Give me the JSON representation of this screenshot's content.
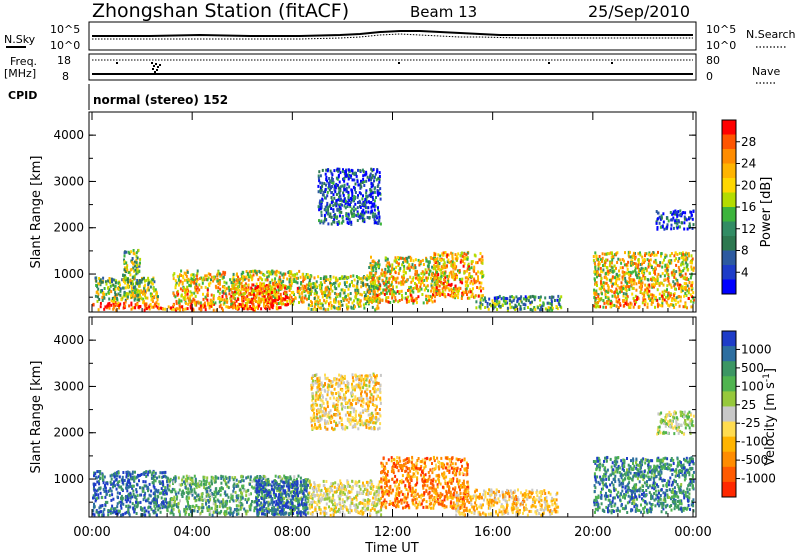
{
  "header": {
    "station": "Zhongshan Station (fitACF)",
    "beam": "Beam 13",
    "date": "25/Sep/2010"
  },
  "top_panels": {
    "nsky_label": "N.Sky",
    "nsky_ticks": [
      "10^5",
      "10^0"
    ],
    "nsearch_label": "N.Search",
    "nsearch_ticks": [
      "10^5",
      "10^0"
    ],
    "freq_label": "Freq.",
    "freq_unit": "[MHz]",
    "freq_ticks": [
      "18",
      "8"
    ],
    "nave_label": "Nave",
    "nave_ticks": [
      "80",
      "0"
    ],
    "cpid_label": "CPID",
    "cpid_value": "normal (stereo) 152"
  },
  "chart_data": [
    {
      "type": "heatmap",
      "name": "power",
      "ylabel": "Slant Range [km]",
      "yticks": [
        "4000",
        "3000",
        "2000",
        "1000"
      ],
      "ylim": [
        180,
        4500
      ],
      "xlim": [
        0,
        24
      ],
      "colorbar_label": "Power [dB]",
      "colorbar_ticks": [
        "28",
        "24",
        "20",
        "16",
        "12",
        "8",
        "4"
      ],
      "colorbar_colors": [
        "#ff0000",
        "#ff5500",
        "#ff8c00",
        "#ffb400",
        "#ffd700",
        "#b4dc00",
        "#3cb43c",
        "#328c64",
        "#2d7850",
        "#2d5aa0",
        "#1e3cc8",
        "#0000ff"
      ],
      "echo_regions": [
        {
          "t0": 0.0,
          "t1": 2.6,
          "r0": 250,
          "r1": 420,
          "level": 0.85
        },
        {
          "t0": 0.1,
          "t1": 2.6,
          "r0": 420,
          "r1": 950,
          "level": 0.45
        },
        {
          "t0": 1.2,
          "t1": 1.9,
          "r0": 500,
          "r1": 1550,
          "level": 0.45
        },
        {
          "t0": 2.6,
          "t1": 7.2,
          "r0": 250,
          "r1": 380,
          "level": 0.8
        },
        {
          "t0": 3.2,
          "t1": 8.6,
          "r0": 380,
          "r1": 1100,
          "level": 0.6
        },
        {
          "t0": 5.5,
          "t1": 7.8,
          "r0": 280,
          "r1": 800,
          "level": 0.75
        },
        {
          "t0": 8.6,
          "t1": 11.4,
          "r0": 250,
          "r1": 1000,
          "level": 0.5
        },
        {
          "t0": 11.0,
          "t1": 13.8,
          "r0": 400,
          "r1": 1400,
          "level": 0.6
        },
        {
          "t0": 13.6,
          "t1": 15.6,
          "r0": 500,
          "r1": 1500,
          "level": 0.65
        },
        {
          "t0": 15.3,
          "t1": 18.7,
          "r0": 250,
          "r1": 550,
          "level": 0.3
        },
        {
          "t0": 20.0,
          "t1": 24.0,
          "r0": 300,
          "r1": 1500,
          "level": 0.6
        },
        {
          "t0": 9.0,
          "t1": 11.5,
          "r0": 2100,
          "r1": 3300,
          "level": 0.15
        },
        {
          "t0": 22.5,
          "t1": 24.0,
          "r0": 2000,
          "r1": 2400,
          "level": 0.12
        }
      ]
    },
    {
      "type": "heatmap",
      "name": "velocity",
      "ylabel": "Slant Range [km]",
      "yticks": [
        "4000",
        "3000",
        "2000",
        "1000"
      ],
      "ylim": [
        180,
        4500
      ],
      "xlim": [
        0,
        24
      ],
      "xticks": [
        "00:00",
        "04:00",
        "08:00",
        "12:00",
        "16:00",
        "20:00",
        "00:00"
      ],
      "xlabel": "Time UT",
      "colorbar_label": "Velocity [m s",
      "colorbar_unit_exp": "-1",
      "colorbar_ticks": [
        "1000",
        "500",
        "100",
        "25",
        "-25",
        "-100",
        "-500",
        "-1000"
      ],
      "colorbar_colors": [
        "#1e3cc8",
        "#2d6ea0",
        "#3c9664",
        "#50b450",
        "#96c83c",
        "#c8c8c8",
        "#ffdc50",
        "#ffb400",
        "#ff8c00",
        "#ff5a00",
        "#ff2800"
      ],
      "echo_regions": [
        {
          "t0": 0.0,
          "t1": 3.0,
          "r0": 250,
          "r1": 1200,
          "vel": 0.12
        },
        {
          "t0": 3.0,
          "t1": 8.6,
          "r0": 250,
          "r1": 1100,
          "vel": 0.3
        },
        {
          "t0": 6.5,
          "t1": 8.6,
          "r0": 250,
          "r1": 1000,
          "vel": 0.05
        },
        {
          "t0": 8.6,
          "t1": 11.6,
          "r0": 250,
          "r1": 1000,
          "vel": 0.55
        },
        {
          "t0": 11.5,
          "t1": 15.0,
          "r0": 400,
          "r1": 1500,
          "vel": 0.78
        },
        {
          "t0": 14.5,
          "t1": 18.6,
          "r0": 250,
          "r1": 800,
          "vel": 0.65
        },
        {
          "t0": 20.0,
          "t1": 24.0,
          "r0": 300,
          "r1": 1500,
          "vel": 0.2
        },
        {
          "t0": 8.7,
          "t1": 11.5,
          "r0": 2100,
          "r1": 3300,
          "vel": 0.6
        },
        {
          "t0": 22.5,
          "t1": 24.0,
          "r0": 2000,
          "r1": 2500,
          "vel": 0.45
        }
      ]
    }
  ]
}
